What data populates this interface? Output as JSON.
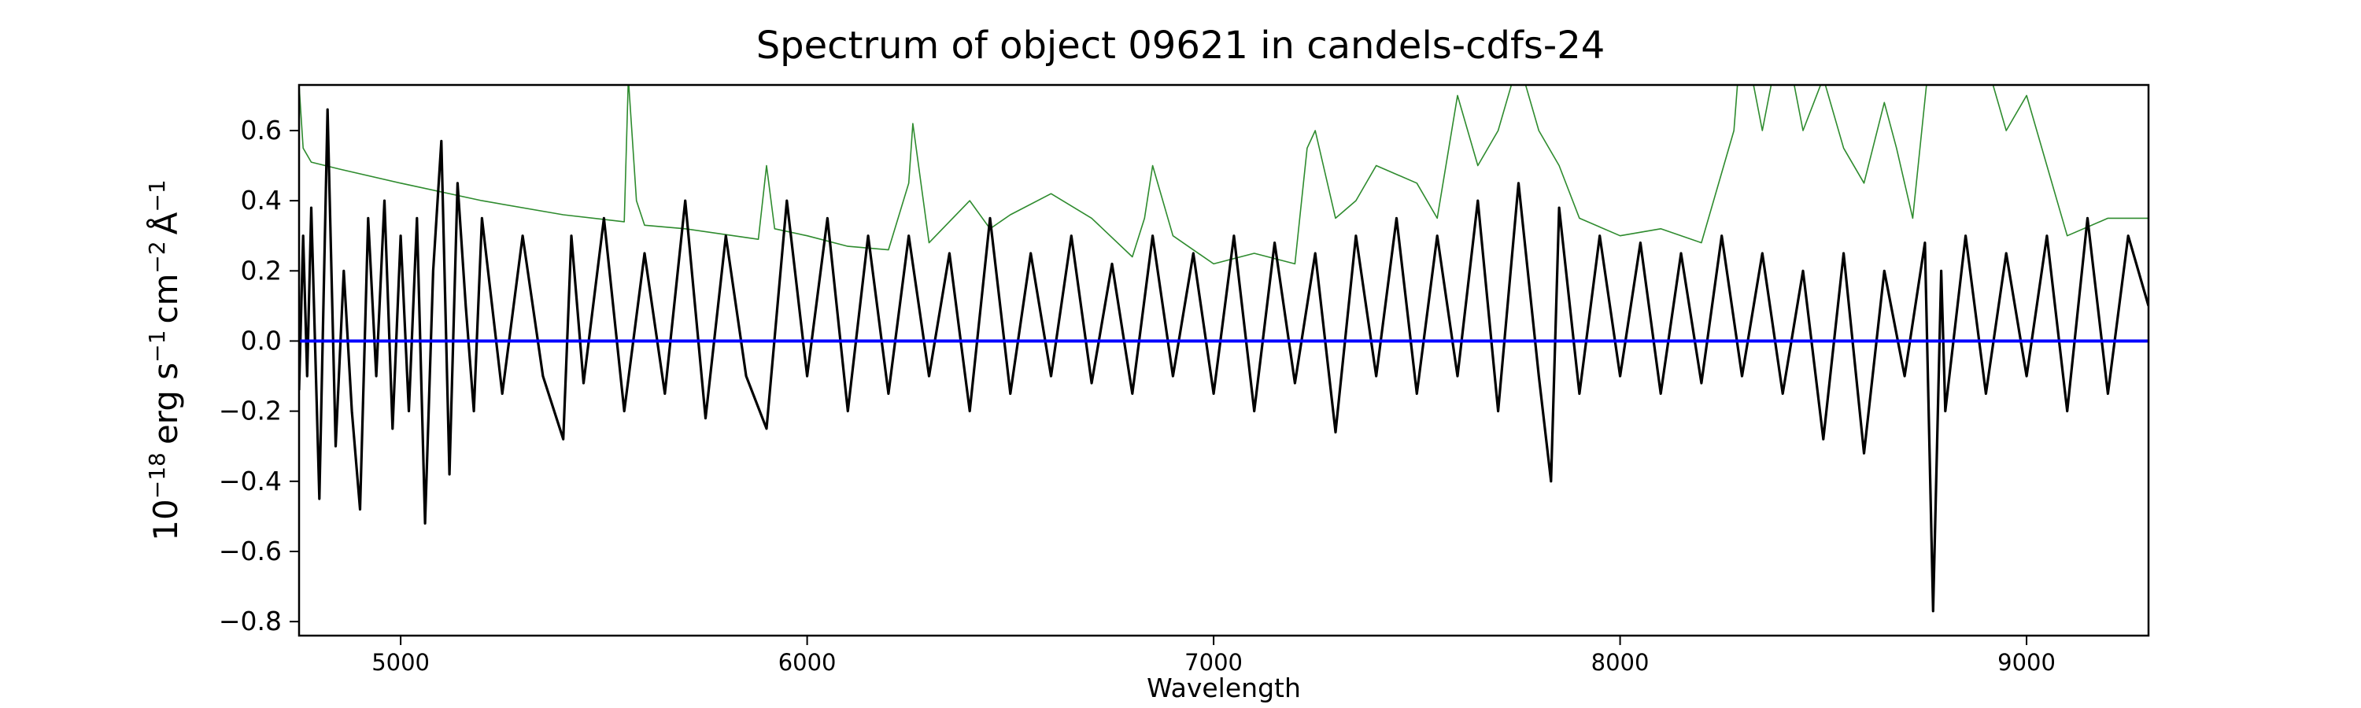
{
  "chart_data": {
    "type": "line",
    "title": "Spectrum of object 09621 in candels-cdfs-24",
    "xlabel": "Wavelength",
    "ylabel": {
      "base": "10",
      "base_exp": "−18",
      "erg": "erg s",
      "s_exp": "−1",
      "cm": "cm",
      "cm_exp": "−2",
      "ang": "Å",
      "ang_exp": "−1"
    },
    "xlim": [
      4750,
      9300
    ],
    "ylim": [
      -0.84,
      0.73
    ],
    "xticks": [
      5000,
      6000,
      7000,
      8000,
      9000
    ],
    "xtick_labels": [
      "5000",
      "6000",
      "7000",
      "8000",
      "9000"
    ],
    "yticks": [
      0.6,
      0.4,
      0.2,
      0.0,
      -0.2,
      -0.4,
      -0.6,
      -0.8
    ],
    "ytick_labels": [
      "0.6",
      "0.4",
      "0.2",
      "0.0",
      "−0.2",
      "−0.4",
      "−0.6",
      "−0.8"
    ],
    "grid": false,
    "legend": "none",
    "series": [
      {
        "role": "error",
        "color": "#2e8b2e",
        "x": [
          4750,
          4760,
          4780,
          4850,
          5000,
          5200,
          5400,
          5550,
          5560,
          5580,
          5600,
          5700,
          5880,
          5900,
          5920,
          6000,
          6100,
          6200,
          6250,
          6260,
          6300,
          6400,
          6450,
          6500,
          6600,
          6700,
          6800,
          6830,
          6850,
          6900,
          7000,
          7100,
          7200,
          7230,
          7250,
          7300,
          7350,
          7400,
          7500,
          7550,
          7600,
          7650,
          7700,
          7750,
          7800,
          7850,
          7900,
          8000,
          8100,
          8200,
          8280,
          8300,
          8350,
          8400,
          8450,
          8500,
          8550,
          8600,
          8650,
          8680,
          8720,
          8760,
          8800,
          8850,
          8900,
          8950,
          9000,
          9100,
          9200,
          9300
        ],
        "y": [
          0.73,
          0.55,
          0.51,
          0.49,
          0.45,
          0.4,
          0.36,
          0.34,
          0.75,
          0.4,
          0.33,
          0.32,
          0.29,
          0.5,
          0.32,
          0.3,
          0.27,
          0.26,
          0.45,
          0.62,
          0.28,
          0.4,
          0.32,
          0.36,
          0.42,
          0.35,
          0.24,
          0.35,
          0.5,
          0.3,
          0.22,
          0.25,
          0.22,
          0.55,
          0.6,
          0.35,
          0.4,
          0.5,
          0.45,
          0.35,
          0.7,
          0.5,
          0.6,
          0.8,
          0.6,
          0.5,
          0.35,
          0.3,
          0.32,
          0.28,
          0.6,
          0.9,
          0.6,
          0.9,
          0.6,
          0.75,
          0.55,
          0.45,
          0.68,
          0.55,
          0.35,
          0.8,
          0.9,
          0.75,
          0.8,
          0.6,
          0.7,
          0.3,
          0.35,
          0.35
        ]
      },
      {
        "role": "flux",
        "color": "#000000",
        "x": [
          4750,
          4760,
          4770,
          4780,
          4800,
          4820,
          4840,
          4860,
          4880,
          4900,
          4920,
          4940,
          4960,
          4980,
          5000,
          5020,
          5040,
          5060,
          5080,
          5100,
          5120,
          5140,
          5160,
          5180,
          5200,
          5250,
          5300,
          5350,
          5400,
          5420,
          5450,
          5500,
          5550,
          5600,
          5650,
          5700,
          5750,
          5800,
          5850,
          5900,
          5950,
          6000,
          6050,
          6100,
          6150,
          6200,
          6250,
          6300,
          6350,
          6400,
          6450,
          6500,
          6550,
          6600,
          6650,
          6700,
          6750,
          6800,
          6850,
          6900,
          6950,
          7000,
          7050,
          7100,
          7150,
          7200,
          7250,
          7300,
          7350,
          7400,
          7450,
          7500,
          7550,
          7600,
          7650,
          7700,
          7750,
          7800,
          7830,
          7850,
          7900,
          7950,
          8000,
          8050,
          8100,
          8150,
          8200,
          8250,
          8300,
          8350,
          8400,
          8450,
          8500,
          8550,
          8600,
          8650,
          8700,
          8750,
          8770,
          8790,
          8800,
          8850,
          8900,
          8950,
          9000,
          9050,
          9100,
          9150,
          9200,
          9250,
          9300
        ],
        "y": [
          -0.14,
          0.3,
          -0.1,
          0.38,
          -0.45,
          0.66,
          -0.3,
          0.2,
          -0.2,
          -0.48,
          0.35,
          -0.1,
          0.4,
          -0.25,
          0.3,
          -0.2,
          0.35,
          -0.52,
          0.2,
          0.57,
          -0.38,
          0.45,
          0.1,
          -0.2,
          0.35,
          -0.15,
          0.3,
          -0.1,
          -0.28,
          0.3,
          -0.12,
          0.35,
          -0.2,
          0.25,
          -0.15,
          0.4,
          -0.22,
          0.3,
          -0.1,
          -0.25,
          0.4,
          -0.1,
          0.35,
          -0.2,
          0.3,
          -0.15,
          0.3,
          -0.1,
          0.25,
          -0.2,
          0.35,
          -0.15,
          0.25,
          -0.1,
          0.3,
          -0.12,
          0.22,
          -0.15,
          0.3,
          -0.1,
          0.25,
          -0.15,
          0.3,
          -0.2,
          0.28,
          -0.12,
          0.25,
          -0.26,
          0.3,
          -0.1,
          0.35,
          -0.15,
          0.3,
          -0.1,
          0.4,
          -0.2,
          0.45,
          -0.1,
          -0.4,
          0.38,
          -0.15,
          0.3,
          -0.1,
          0.28,
          -0.15,
          0.25,
          -0.12,
          0.3,
          -0.1,
          0.25,
          -0.15,
          0.2,
          -0.28,
          0.25,
          -0.32,
          0.2,
          -0.1,
          0.28,
          -0.77,
          0.2,
          -0.2,
          0.3,
          -0.15,
          0.25,
          -0.1,
          0.3,
          -0.2,
          0.35,
          -0.15,
          0.3,
          0.1
        ]
      },
      {
        "role": "zero",
        "color": "#0000ff",
        "x": [
          4750,
          9300
        ],
        "y": [
          0.0,
          0.0
        ]
      }
    ]
  }
}
